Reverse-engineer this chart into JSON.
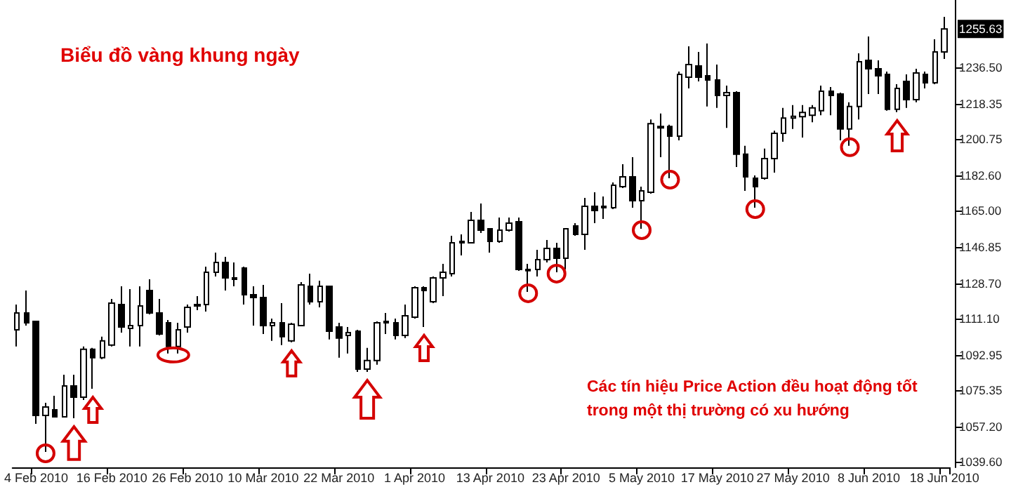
{
  "chart_data": {
    "type": "candlestick",
    "title": "Biểu đồ vàng khung ngày",
    "annotations": [
      "Các tín hiệu Price Action đều hoạt động tốt trong một thị trường có xu hướng",
      "1255.63"
    ],
    "categories": [
      null,
      null,
      "4 Feb 2010",
      null,
      null,
      null,
      null,
      null,
      null,
      null,
      "16 Feb 2010",
      null,
      null,
      null,
      null,
      null,
      null,
      null,
      "26 Feb 2010",
      null,
      null,
      null,
      null,
      null,
      null,
      null,
      "10 Mar 2010",
      null,
      null,
      null,
      null,
      null,
      null,
      null,
      "22 Mar 2010",
      null,
      null,
      null,
      null,
      null,
      null,
      null,
      "1 Apr 2010",
      null,
      null,
      null,
      null,
      null,
      null,
      null,
      "13 Apr 2010",
      null,
      null,
      null,
      null,
      null,
      null,
      null,
      "23 Apr 2010",
      null,
      null,
      null,
      null,
      null,
      null,
      null,
      "5 May 2010",
      null,
      null,
      null,
      null,
      null,
      null,
      null,
      "17 May 2010",
      null,
      null,
      null,
      null,
      null,
      null,
      null,
      "27 May 2010",
      null,
      null,
      null,
      null,
      null,
      null,
      null,
      "8 Jun 2010",
      null,
      null,
      null,
      null,
      null,
      null,
      null,
      "18 Jun 2010"
    ],
    "ohlc": [
      [
        1105.5,
        1118.1,
        1097.1,
        1113.9
      ],
      [
        1113.9,
        1125.1,
        1107.6,
        1109.0
      ],
      [
        1109.7,
        1109.7,
        1058.5,
        1062.7
      ],
      [
        1062.7,
        1069.0,
        1044.5,
        1066.9
      ],
      [
        1065.5,
        1072.5,
        1062.0,
        1062.0
      ],
      [
        1062.0,
        1083.0,
        1062.0,
        1077.4
      ],
      [
        1077.4,
        1083.0,
        1061.3,
        1071.8
      ],
      [
        1071.8,
        1097.1,
        1070.4,
        1095.7
      ],
      [
        1095.7,
        1096.4,
        1076.0,
        1091.5
      ],
      [
        1091.5,
        1102.0,
        1090.8,
        1099.9
      ],
      [
        1097.8,
        1120.9,
        1097.1,
        1118.8
      ],
      [
        1118.1,
        1127.2,
        1104.1,
        1106.9
      ],
      [
        1106.2,
        1125.8,
        1097.1,
        1107.6
      ],
      [
        1107.6,
        1127.2,
        1097.1,
        1117.4
      ],
      [
        1125.1,
        1130.7,
        1113.2,
        1113.9
      ],
      [
        1113.9,
        1120.9,
        1102.7,
        1103.4
      ],
      [
        1109.0,
        1110.4,
        1093.6,
        1097.1
      ],
      [
        1097.1,
        1109.0,
        1093.6,
        1105.5
      ],
      [
        1106.9,
        1118.1,
        1104.1,
        1116.7
      ],
      [
        1117.4,
        1122.3,
        1115.3,
        1118.1
      ],
      [
        1118.1,
        1137.0,
        1114.6,
        1134.2
      ],
      [
        1134.2,
        1144.0,
        1132.1,
        1139.1
      ],
      [
        1139.1,
        1141.9,
        1125.1,
        1131.4
      ],
      [
        1131.4,
        1139.1,
        1127.2,
        1130.7
      ],
      [
        1136.3,
        1137.0,
        1118.1,
        1123.0
      ],
      [
        1123.0,
        1127.2,
        1107.6,
        1121.6
      ],
      [
        1121.6,
        1127.9,
        1103.4,
        1107.6
      ],
      [
        1107.6,
        1111.1,
        1099.9,
        1109.0
      ],
      [
        1109.0,
        1118.8,
        1097.8,
        1102.0
      ],
      [
        1099.9,
        1109.0,
        1099.2,
        1108.3
      ],
      [
        1107.6,
        1129.3,
        1107.6,
        1127.9
      ],
      [
        1127.2,
        1133.5,
        1118.1,
        1119.5
      ],
      [
        1119.5,
        1130.0,
        1116.7,
        1127.2
      ],
      [
        1127.2,
        1127.2,
        1100.6,
        1104.8
      ],
      [
        1106.9,
        1109.0,
        1091.5,
        1101.3
      ],
      [
        1102.7,
        1106.9,
        1093.6,
        1104.1
      ],
      [
        1104.8,
        1105.5,
        1084.4,
        1085.8
      ],
      [
        1085.8,
        1096.4,
        1084.4,
        1090.1
      ],
      [
        1090.1,
        1109.7,
        1088.0,
        1109.0
      ],
      [
        1109.0,
        1113.9,
        1103.4,
        1109.7
      ],
      [
        1109.0,
        1111.1,
        1100.6,
        1102.7
      ],
      [
        1102.7,
        1118.1,
        1101.3,
        1112.5
      ],
      [
        1111.8,
        1127.2,
        1111.1,
        1126.5
      ],
      [
        1126.5,
        1127.2,
        1106.9,
        1125.1
      ],
      [
        1119.5,
        1132.1,
        1118.8,
        1131.4
      ],
      [
        1131.4,
        1138.4,
        1122.3,
        1134.2
      ],
      [
        1133.5,
        1152.4,
        1132.1,
        1148.9
      ],
      [
        1148.9,
        1153.1,
        1142.6,
        1149.6
      ],
      [
        1148.9,
        1164.3,
        1148.9,
        1160.1
      ],
      [
        1160.1,
        1168.5,
        1153.8,
        1155.2
      ],
      [
        1155.9,
        1155.9,
        1144.0,
        1149.6
      ],
      [
        1149.6,
        1161.5,
        1148.9,
        1155.2
      ],
      [
        1155.2,
        1161.5,
        1154.5,
        1158.7
      ],
      [
        1159.4,
        1161.5,
        1134.9,
        1135.6
      ],
      [
        1135.0,
        1138.4,
        1124.4,
        1135.6
      ],
      [
        1135.6,
        1145.4,
        1132.1,
        1140.5
      ],
      [
        1140.5,
        1150.3,
        1139.1,
        1146.1
      ],
      [
        1146.1,
        1148.9,
        1134.2,
        1141.2
      ],
      [
        1141.2,
        1155.9,
        1135.6,
        1155.9
      ],
      [
        1157.3,
        1158.7,
        1152.4,
        1153.1
      ],
      [
        1153.1,
        1171.3,
        1145.4,
        1167.1
      ],
      [
        1167.1,
        1174.1,
        1158.7,
        1165.0
      ],
      [
        1166.4,
        1172.0,
        1160.8,
        1167.1
      ],
      [
        1166.4,
        1179.0,
        1165.7,
        1177.6
      ],
      [
        1176.9,
        1188.1,
        1176.2,
        1181.8
      ],
      [
        1181.8,
        1191.6,
        1166.4,
        1169.9
      ],
      [
        1169.9,
        1176.9,
        1155.9,
        1174.8
      ],
      [
        1174.1,
        1210.5,
        1173.4,
        1208.4
      ],
      [
        1206.3,
        1213.4,
        1191.6,
        1207.0
      ],
      [
        1207.0,
        1207.8,
        1181.1,
        1202.1
      ],
      [
        1202.1,
        1234.4,
        1200.0,
        1233.0
      ],
      [
        1231.6,
        1247.0,
        1226.0,
        1237.9
      ],
      [
        1237.2,
        1244.2,
        1229.5,
        1231.6
      ],
      [
        1232.3,
        1248.4,
        1216.9,
        1230.2
      ],
      [
        1230.2,
        1237.9,
        1216.2,
        1222.5
      ],
      [
        1222.5,
        1227.4,
        1206.3,
        1223.9
      ],
      [
        1223.9,
        1224.6,
        1186.7,
        1193.1
      ],
      [
        1193.1,
        1197.3,
        1174.8,
        1181.8
      ],
      [
        1181.1,
        1182.5,
        1166.4,
        1176.9
      ],
      [
        1181.1,
        1195.9,
        1180.4,
        1190.9
      ],
      [
        1190.9,
        1204.9,
        1183.9,
        1203.5
      ],
      [
        1203.5,
        1216.2,
        1199.3,
        1211.2
      ],
      [
        1211.2,
        1217.6,
        1205.7,
        1212.0
      ],
      [
        1211.9,
        1217.6,
        1201.4,
        1214.0
      ],
      [
        1212.6,
        1217.6,
        1209.1,
        1216.2
      ],
      [
        1214.8,
        1227.4,
        1212.6,
        1224.6
      ],
      [
        1224.6,
        1226.7,
        1212.6,
        1222.5
      ],
      [
        1223.2,
        1223.9,
        1200.0,
        1205.7
      ],
      [
        1205.7,
        1219.0,
        1197.3,
        1216.9
      ],
      [
        1216.9,
        1243.5,
        1210.5,
        1239.3
      ],
      [
        1240.0,
        1251.9,
        1223.2,
        1235.8
      ],
      [
        1235.8,
        1240.0,
        1223.2,
        1232.3
      ],
      [
        1233.0,
        1234.4,
        1214.8,
        1215.5
      ],
      [
        1215.5,
        1228.1,
        1214.1,
        1226.0
      ],
      [
        1229.5,
        1233.0,
        1216.2,
        1220.4
      ],
      [
        1220.4,
        1235.8,
        1219.0,
        1233.7
      ],
      [
        1233.0,
        1234.4,
        1226.0,
        1228.8
      ],
      [
        1228.8,
        1250.5,
        1228.1,
        1244.2
      ],
      [
        1244.2,
        1261.7,
        1240.7,
        1255.63
      ]
    ],
    "ylim": [
      1036.8,
      1270.1
    ],
    "yticks": [
      {
        "value": 1039.6,
        "label": "1039.60"
      },
      {
        "value": 1057.2,
        "label": "1057.20"
      },
      {
        "value": 1075.35,
        "label": "1075.35"
      },
      {
        "value": 1092.95,
        "label": "1092.95"
      },
      {
        "value": 1111.1,
        "label": "1111.10"
      },
      {
        "value": 1128.7,
        "label": "1128.70"
      },
      {
        "value": 1146.85,
        "label": "1146.85"
      },
      {
        "value": 1165.0,
        "label": "1165.00"
      },
      {
        "value": 1182.6,
        "label": "1182.60"
      },
      {
        "value": 1200.75,
        "label": "1200.75"
      },
      {
        "value": 1218.35,
        "label": "1218.35"
      },
      {
        "value": 1236.5,
        "label": "1236.50"
      }
    ]
  }
}
